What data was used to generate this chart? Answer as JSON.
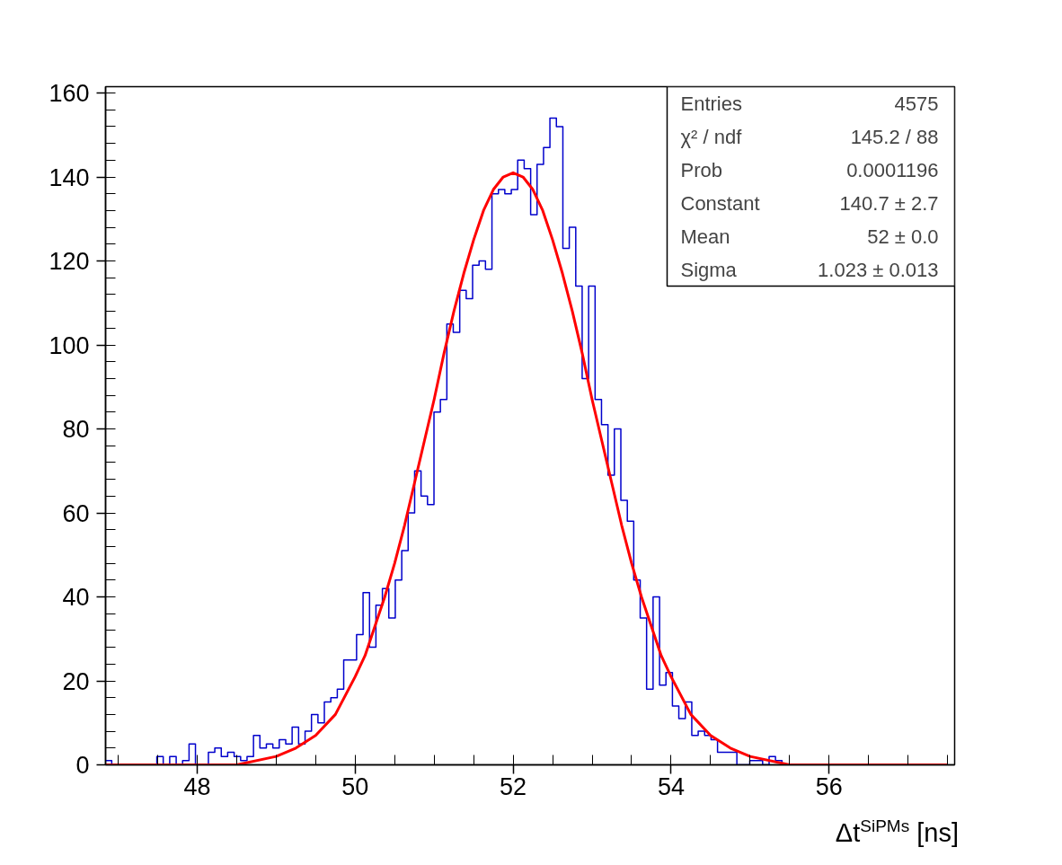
{
  "chart_data": {
    "type": "histogram",
    "color": "#0000cc",
    "bins": [
      46.836,
      46.918,
      46.999,
      47.081,
      47.162,
      47.244,
      47.326,
      47.407,
      47.489,
      47.57,
      47.652,
      47.734,
      47.815,
      47.897,
      47.978,
      48.06,
      48.142,
      48.223,
      48.305,
      48.386,
      48.468,
      48.55,
      48.631,
      48.713,
      48.794,
      48.876,
      48.958,
      49.039,
      49.121,
      49.202,
      49.284,
      49.366,
      49.447,
      49.529,
      49.61,
      49.692,
      49.774,
      49.855,
      49.937,
      50.018,
      50.1,
      50.182,
      50.263,
      50.345,
      50.426,
      50.508,
      50.59,
      50.671,
      50.753,
      50.834,
      50.916,
      50.998,
      51.079,
      51.161,
      51.242,
      51.324,
      51.406,
      51.487,
      51.569,
      51.65,
      51.732,
      51.814,
      51.895,
      51.977,
      52.058,
      52.14,
      52.222,
      52.303,
      52.385,
      52.466,
      52.548,
      52.63,
      52.711,
      52.793,
      52.874,
      52.956,
      53.038,
      53.119,
      53.201,
      53.282,
      53.364,
      53.446,
      53.527,
      53.609,
      53.69,
      53.772,
      53.854,
      53.935,
      54.017,
      54.098,
      54.18,
      54.262,
      54.343,
      54.425,
      54.506,
      54.588,
      54.67,
      54.751,
      54.833,
      54.914,
      54.996,
      55.078,
      55.159,
      55.241,
      55.322,
      55.404,
      55.486
    ],
    "values": [
      1,
      0,
      0,
      0,
      0,
      0,
      0,
      0,
      2,
      0,
      2,
      0,
      1,
      5,
      0,
      0,
      3,
      4,
      2,
      3,
      2,
      1,
      2,
      7,
      4,
      5,
      4,
      6,
      5,
      9,
      5,
      8,
      12,
      10,
      15,
      16,
      18,
      25,
      25,
      31,
      41,
      28,
      38,
      42,
      35,
      44,
      51,
      60,
      70,
      64,
      62,
      84,
      87,
      105,
      103,
      113,
      111,
      119,
      120,
      118,
      136,
      137,
      136,
      137,
      144,
      142,
      131,
      143,
      147,
      154,
      152,
      123,
      128,
      114,
      92,
      114,
      87,
      81,
      69,
      80,
      63,
      58,
      44,
      35,
      18,
      40,
      19,
      22,
      14,
      11,
      15,
      7,
      8,
      7,
      6,
      3,
      3,
      3,
      0,
      0,
      1,
      1,
      0,
      2,
      1,
      0
    ],
    "series": [
      {
        "type": "line",
        "color": "#ff0000",
        "x": [
          46.84,
          48,
          48.5,
          49,
          49.25,
          49.5,
          49.75,
          50,
          50.125,
          50.25,
          50.375,
          50.5,
          50.625,
          50.75,
          50.875,
          51,
          51.125,
          51.25,
          51.375,
          51.5,
          51.625,
          51.75,
          51.875,
          52,
          52.125,
          52.25,
          52.375,
          52.5,
          52.625,
          52.75,
          52.875,
          53,
          53.125,
          53.25,
          53.375,
          53.5,
          53.625,
          53.75,
          53.875,
          54,
          54.25,
          54.5,
          54.75,
          55,
          55.5,
          56,
          57.5
        ],
        "values": [
          0,
          0,
          0,
          2,
          4,
          7,
          12,
          21,
          26,
          33,
          40,
          48,
          57,
          67,
          77,
          87,
          98,
          108,
          117,
          125,
          132,
          137,
          140,
          141,
          140,
          137,
          132,
          125,
          117,
          108,
          98,
          87,
          77,
          67,
          57,
          48,
          40,
          33,
          26,
          21,
          12,
          7,
          4,
          2,
          0,
          0,
          0
        ]
      }
    ],
    "xlabel": "Δt$^{SiPMs}$ [ns]",
    "xlim": [
      46.84,
      57.59
    ],
    "ylim": [
      0,
      161.5
    ],
    "xticks": [
      48,
      50,
      52,
      54,
      56
    ],
    "yticks": [
      0,
      20,
      40,
      60,
      80,
      100,
      120,
      140,
      160
    ],
    "grid": false,
    "annotations": [
      "Entries",
      "4575",
      "χ² / ndf",
      "145.2 / 88",
      "Prob",
      "0.0001196",
      "Constant",
      "140.7 ± 2.7",
      "Mean",
      "52 ± 0.0",
      "Sigma",
      "1.023 ± 0.013"
    ]
  }
}
